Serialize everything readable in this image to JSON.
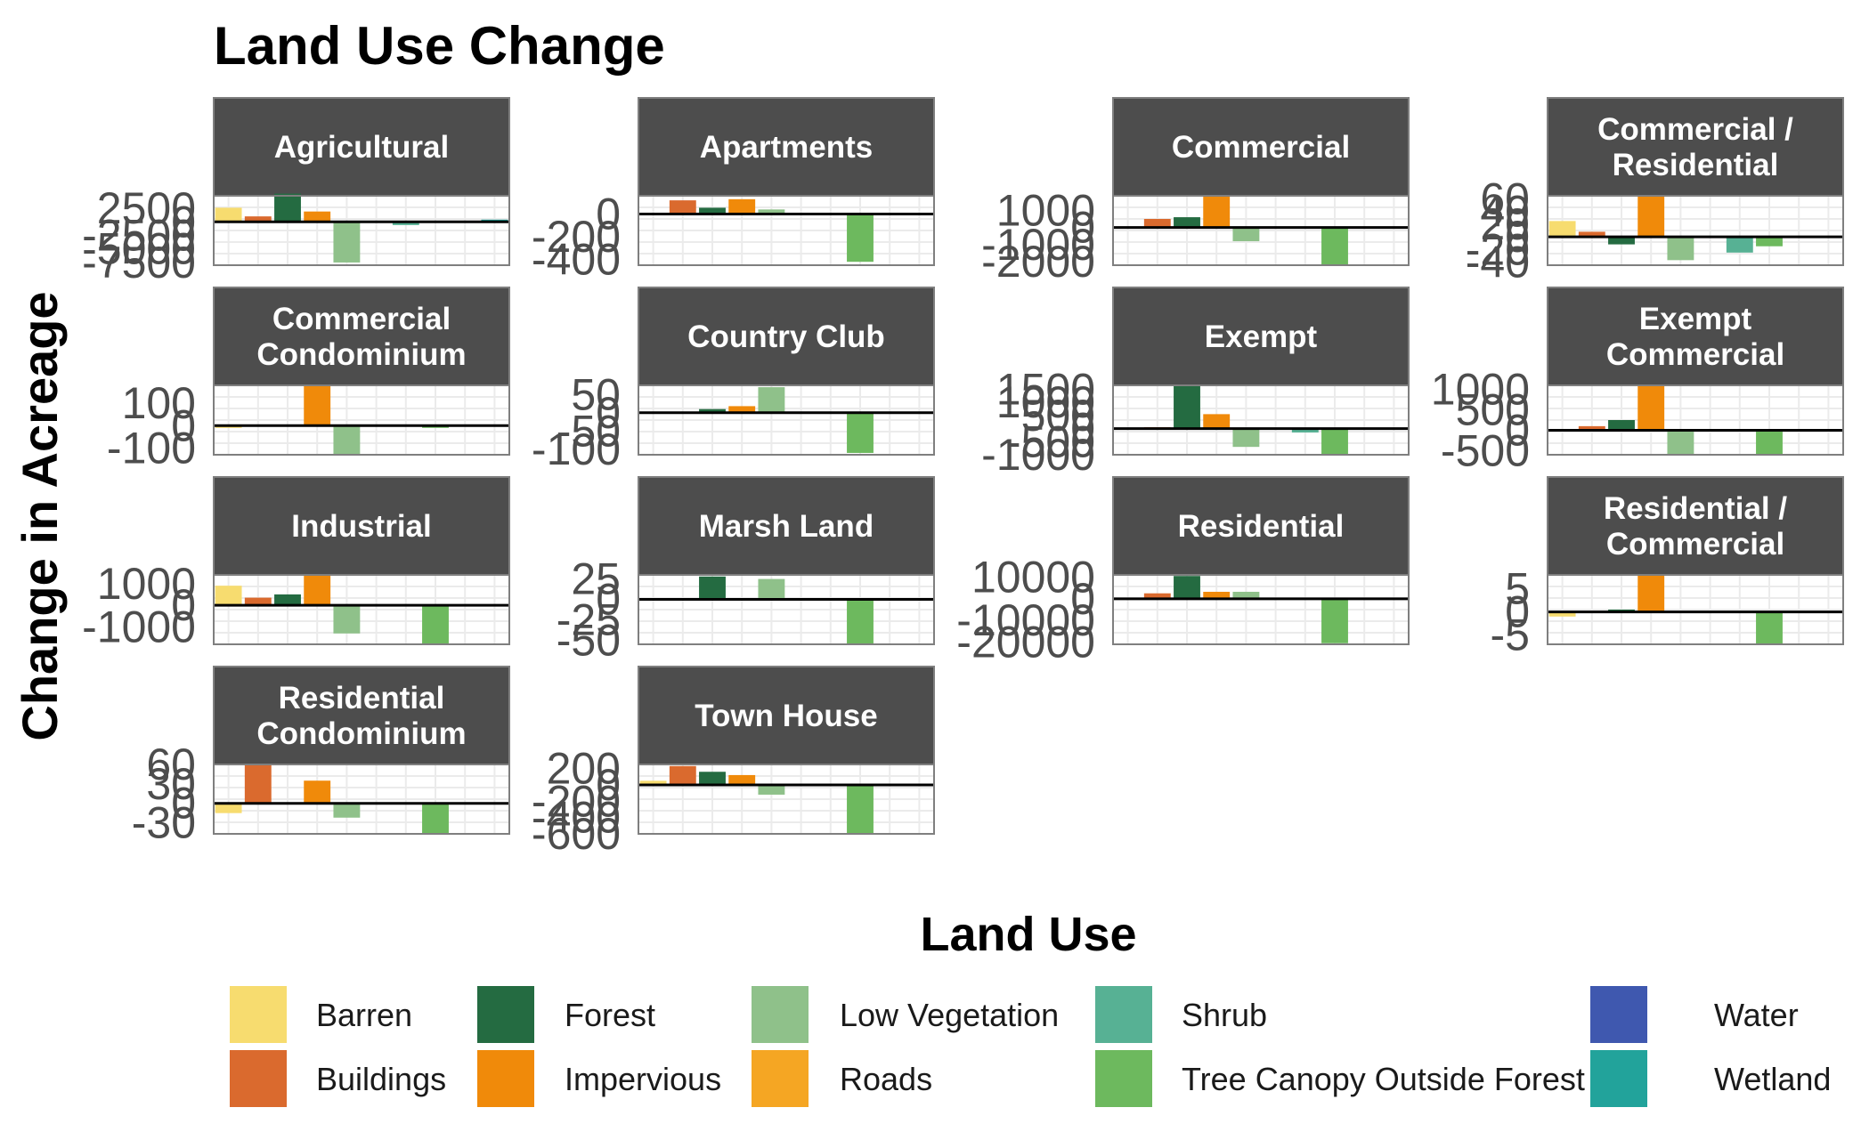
{
  "chart_data": {
    "type": "bar",
    "title": "Land Use Change",
    "ylabel": "Change in Acreage",
    "xlabel": "",
    "legend": {
      "title": "Land Use",
      "placement": "bottom",
      "entries": [
        {
          "name": "Barren",
          "color": "#F7DC6F"
        },
        {
          "name": "Buildings",
          "color": "#DA6A2E"
        },
        {
          "name": "Forest",
          "color": "#246B41"
        },
        {
          "name": "Impervious",
          "color": "#F08A0A"
        },
        {
          "name": "Low Vegetation",
          "color": "#8FC18A"
        },
        {
          "name": "Roads",
          "color": "#F5A623"
        },
        {
          "name": "Shrub",
          "color": "#57B194"
        },
        {
          "name": "Tree Canopy Outside Forest",
          "color": "#6DB95E"
        },
        {
          "name": "Water",
          "color": "#3F58AF"
        },
        {
          "name": "Wetland",
          "color": "#22A39B"
        }
      ]
    },
    "categories": [
      "Barren",
      "Buildings",
      "Forest",
      "Impervious",
      "Low Vegetation",
      "Roads",
      "Shrub",
      "Tree Canopy Outside Forest",
      "Water",
      "Wetland"
    ],
    "grid": true,
    "panels": [
      {
        "name": "Agricultural",
        "label_lines": [
          "Agricultural"
        ],
        "ylim": [
          -8000,
          4800
        ],
        "ticks": [
          "2500",
          "0",
          "-2500",
          "-5000",
          "-7500"
        ],
        "tick_values": [
          2500,
          0,
          -2500,
          -5000,
          -7500
        ],
        "values": [
          2600,
          1000,
          5200,
          1900,
          -7500,
          0,
          -600,
          0,
          0,
          400
        ]
      },
      {
        "name": "Apartments",
        "label_lines": [
          "Apartments"
        ],
        "ylim": [
          -450,
          160
        ],
        "ticks": [
          "0",
          "-200",
          "-400"
        ],
        "tick_values": [
          0,
          -200,
          -400
        ],
        "values": [
          0,
          120,
          55,
          130,
          40,
          0,
          0,
          -420,
          0,
          0
        ]
      },
      {
        "name": "Commercial",
        "label_lines": [
          "Commercial"
        ],
        "ylim": [
          -2200,
          1850
        ],
        "ticks": [
          "1000",
          "0",
          "-1000",
          "-2000"
        ],
        "tick_values": [
          1000,
          0,
          -1000,
          -2000
        ],
        "values": [
          0,
          500,
          600,
          1850,
          -800,
          0,
          0,
          -2150,
          0,
          0
        ]
      },
      {
        "name": "Commercial / Residential",
        "label_lines": [
          "Commercial /",
          "Residential"
        ],
        "ylim": [
          -45,
          65
        ],
        "ticks": [
          "60",
          "40",
          "20",
          "0",
          "-20",
          "-40"
        ],
        "tick_values": [
          60,
          40,
          20,
          0,
          -20,
          -40
        ],
        "values": [
          25,
          8,
          -12,
          65,
          -37,
          0,
          -25,
          -15,
          0,
          0
        ]
      },
      {
        "name": "Commercial Condominium",
        "label_lines": [
          "Commercial",
          "Condominium"
        ],
        "ylim": [
          -130,
          180
        ],
        "ticks": [
          "100",
          "0",
          "-100"
        ],
        "tick_values": [
          100,
          0,
          -100
        ],
        "values": [
          -10,
          0,
          0,
          180,
          -130,
          0,
          0,
          -10,
          0,
          0
        ]
      },
      {
        "name": "Country Club",
        "label_lines": [
          "Country Club"
        ],
        "ylim": [
          -115,
          75
        ],
        "ticks": [
          "50",
          "0",
          "-50",
          "-100"
        ],
        "tick_values": [
          50,
          0,
          -50,
          -100
        ],
        "values": [
          0,
          0,
          10,
          18,
          70,
          0,
          0,
          -110,
          0,
          0
        ]
      },
      {
        "name": "Exempt",
        "label_lines": [
          "Exempt"
        ],
        "ylim": [
          -1000,
          1650
        ],
        "ticks": [
          "1500",
          "1000",
          "500",
          "0",
          "-500",
          "-1000"
        ],
        "tick_values": [
          1500,
          1000,
          500,
          0,
          -500,
          -1000
        ],
        "values": [
          25,
          50,
          1650,
          550,
          -700,
          0,
          -150,
          -1000,
          0,
          0
        ]
      },
      {
        "name": "Exempt Commercial",
        "label_lines": [
          "Exempt",
          "Commercial"
        ],
        "ylim": [
          -600,
          1100
        ],
        "ticks": [
          "1000",
          "500",
          "0",
          "-500"
        ],
        "tick_values": [
          1000,
          500,
          0,
          -500
        ],
        "values": [
          0,
          100,
          250,
          1100,
          -600,
          0,
          0,
          -580,
          0,
          0
        ]
      },
      {
        "name": "Industrial",
        "label_lines": [
          "Industrial"
        ],
        "ylim": [
          -1800,
          1400
        ],
        "ticks": [
          "1000",
          "0",
          "-1000"
        ],
        "tick_values": [
          1000,
          0,
          -1000
        ],
        "values": [
          900,
          350,
          500,
          1400,
          -1300,
          0,
          0,
          -1800,
          0,
          0
        ]
      },
      {
        "name": "Marsh Land",
        "label_lines": [
          "Marsh Land"
        ],
        "ylim": [
          -55,
          30
        ],
        "ticks": [
          "25",
          "0",
          "-25",
          "-50"
        ],
        "tick_values": [
          25,
          0,
          -25,
          -50
        ],
        "values": [
          0,
          0,
          28,
          0,
          25,
          0,
          0,
          -55,
          0,
          0
        ]
      },
      {
        "name": "Residential",
        "label_lines": [
          "Residential"
        ],
        "ylim": [
          -21000,
          11000
        ],
        "ticks": [
          "10000",
          "0",
          "-10000",
          "-20000"
        ],
        "tick_values": [
          10000,
          0,
          -10000,
          -20000
        ],
        "values": [
          0,
          2500,
          10500,
          3200,
          3200,
          0,
          0,
          -20500,
          0,
          0
        ]
      },
      {
        "name": "Residential / Commercial",
        "label_lines": [
          "Residential /",
          "Commercial"
        ],
        "ylim": [
          -7,
          8
        ],
        "ticks": [
          "5",
          "0",
          "-5"
        ],
        "tick_values": [
          5,
          0,
          -5
        ],
        "values": [
          -1,
          0,
          0.5,
          8,
          0,
          0,
          0,
          -7,
          0,
          0
        ]
      },
      {
        "name": "Residential Condominium",
        "label_lines": [
          "Residential",
          "Condominium"
        ],
        "ylim": [
          -47,
          60
        ],
        "ticks": [
          "60",
          "30",
          "0",
          "-30"
        ],
        "tick_values": [
          60,
          30,
          0,
          -30
        ],
        "values": [
          -15,
          60,
          0,
          35,
          -22,
          0,
          0,
          -47,
          0,
          0
        ]
      },
      {
        "name": "Town House",
        "label_lines": [
          "Town House"
        ],
        "ylim": [
          -600,
          250
        ],
        "ticks": [
          "200",
          "0",
          "-200",
          "-400",
          "-600"
        ],
        "tick_values": [
          200,
          0,
          -200,
          -400,
          -600
        ],
        "values": [
          50,
          230,
          160,
          120,
          -120,
          0,
          0,
          -590,
          0,
          0
        ]
      }
    ]
  }
}
